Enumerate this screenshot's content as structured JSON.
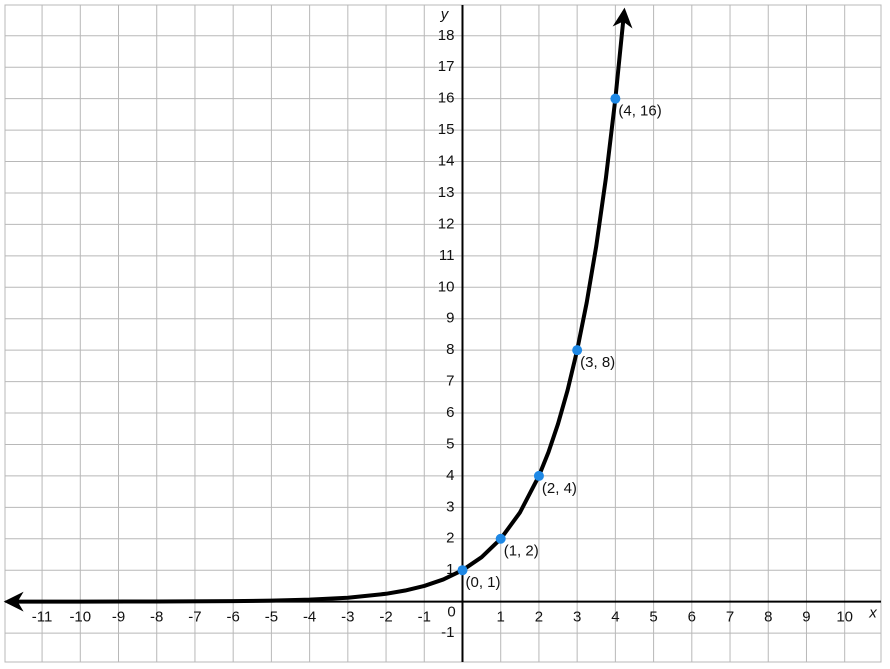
{
  "chart_data": {
    "type": "line",
    "x_label": "x",
    "y_label": "y",
    "xlim": [
      -11.97,
      10.95
    ],
    "ylim": [
      -1.92,
      18.98
    ],
    "xticks": [
      -11,
      -10,
      -9,
      -8,
      -7,
      -6,
      -5,
      -4,
      -3,
      -2,
      -1,
      0,
      1,
      2,
      3,
      4,
      5,
      6,
      7,
      8,
      9,
      10
    ],
    "yticks": [
      -1,
      1,
      2,
      3,
      4,
      5,
      6,
      7,
      8,
      9,
      10,
      11,
      12,
      13,
      14,
      15,
      16,
      17,
      18
    ],
    "grid": true,
    "series": [
      {
        "color": "#000000",
        "x": [
          -11.9,
          -10,
          -8,
          -6,
          -5,
          -4,
          -3,
          -2,
          -1.5,
          -1,
          -0.5,
          0,
          0.5,
          1,
          1.5,
          2,
          2.25,
          2.5,
          2.75,
          3,
          3.25,
          3.5,
          3.75,
          4,
          4.23
        ],
        "values": [
          0,
          0.001,
          0.004,
          0.016,
          0.031,
          0.063,
          0.125,
          0.25,
          0.354,
          0.5,
          0.707,
          1,
          1.414,
          2,
          2.828,
          4,
          4.757,
          5.657,
          6.727,
          8,
          9.514,
          11.314,
          13.454,
          16,
          18.77
        ]
      }
    ],
    "points": {
      "color": "#1e88e5",
      "x": [
        0,
        1,
        2,
        3,
        4
      ],
      "values": [
        1,
        2,
        4,
        8,
        16
      ],
      "labels": [
        "(0, 1)",
        "(1, 2)",
        "(2, 4)",
        "(3, 8)",
        "(4, 16)"
      ]
    }
  }
}
